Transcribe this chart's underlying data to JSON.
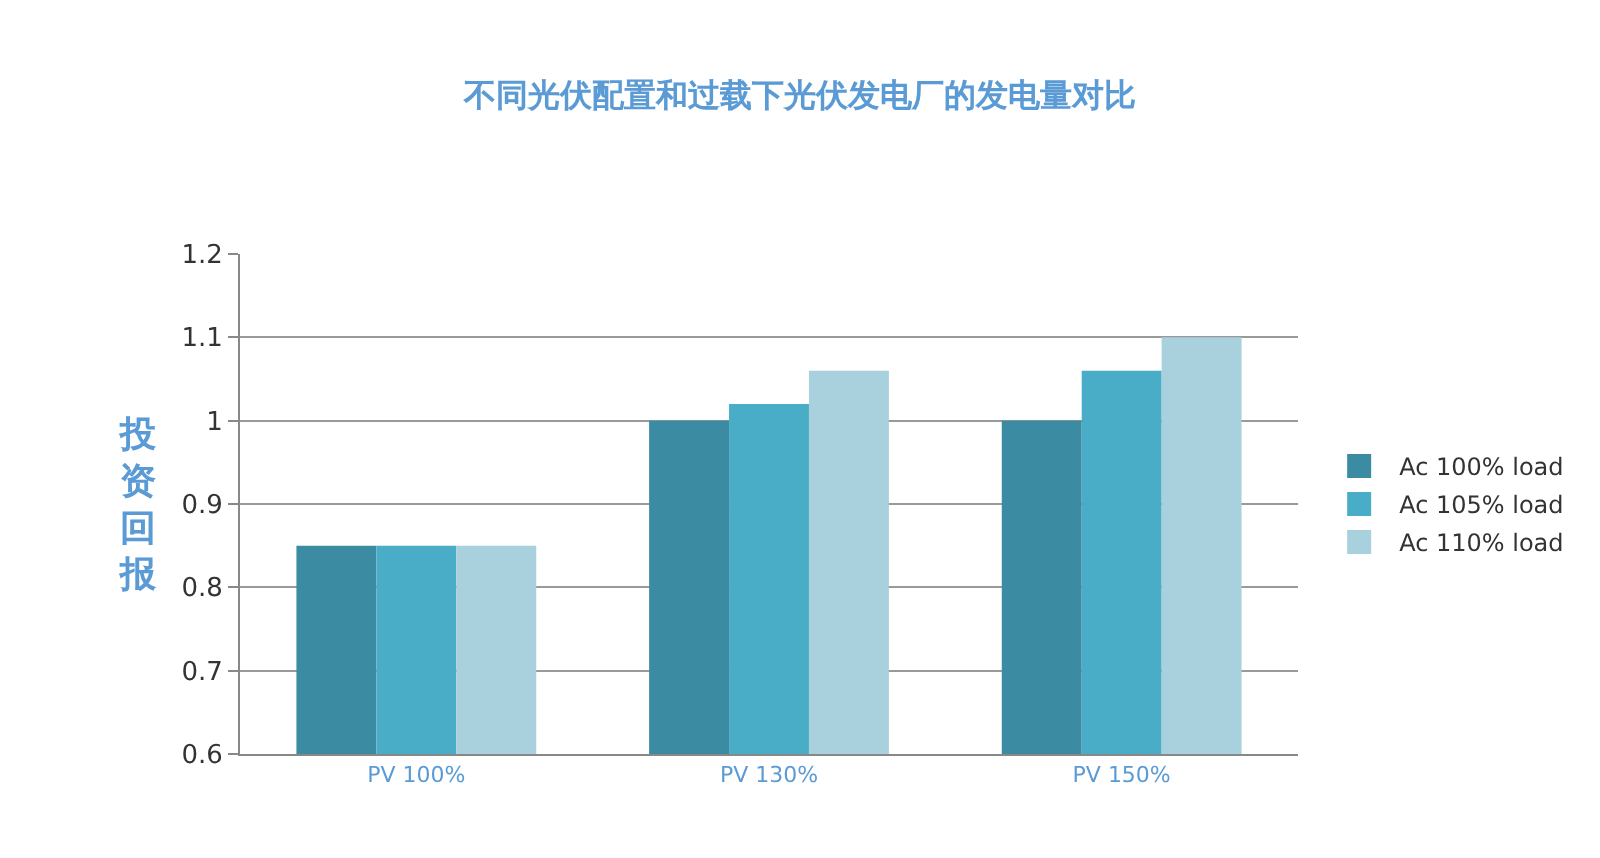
{
  "chart_data": {
    "type": "bar",
    "title": "不同光伏配置和过载下光伏发电厂的发电量对比",
    "ylabel": "投资回报",
    "categories": [
      "PV 100%",
      "PV 130%",
      "PV 150%"
    ],
    "series": [
      {
        "name": "Ac 100% load",
        "color": "#3b8ca3",
        "values": [
          0.85,
          1.0,
          1.0
        ]
      },
      {
        "name": "Ac 105% load",
        "color": "#4aadc7",
        "values": [
          0.85,
          1.02,
          1.06
        ]
      },
      {
        "name": "Ac 110% load",
        "color": "#a8d0dd",
        "values": [
          0.85,
          1.06,
          1.1
        ]
      }
    ],
    "ylim": [
      0.6,
      1.2
    ],
    "yticks": [
      0.6,
      0.7,
      0.8,
      0.9,
      1,
      1.1,
      1.2
    ],
    "grid": "y",
    "legend": "right"
  }
}
